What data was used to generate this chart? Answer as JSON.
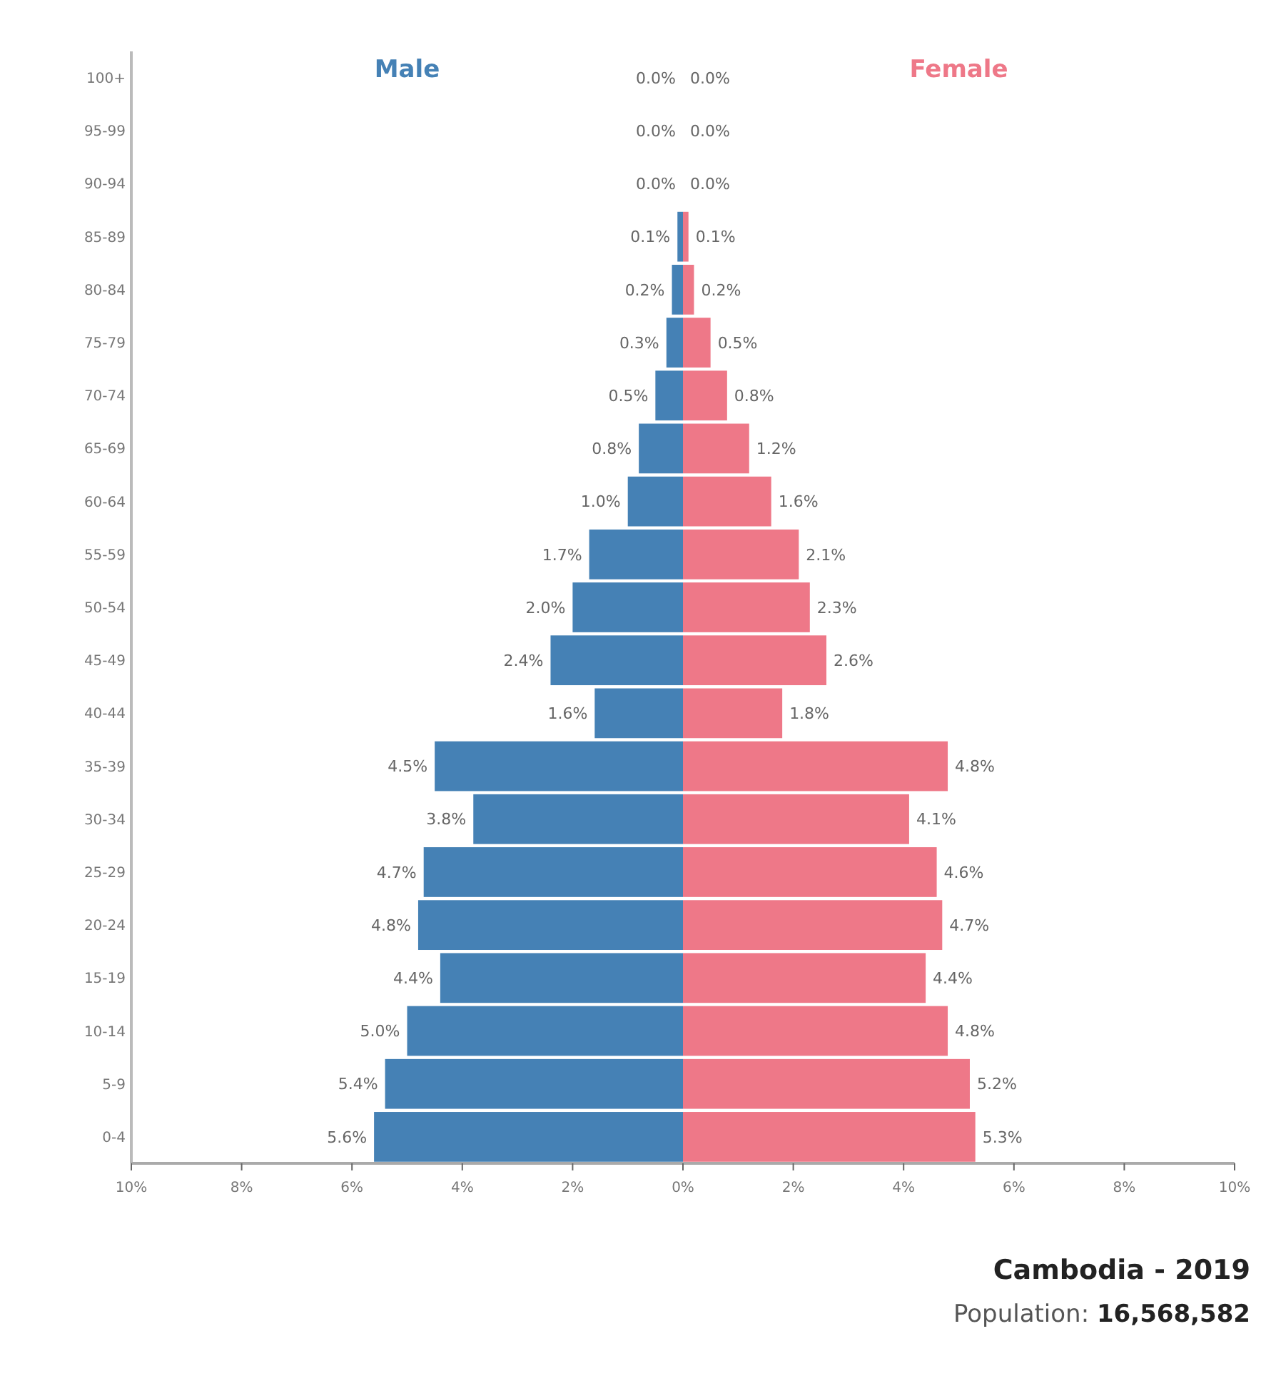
{
  "chart_data": {
    "type": "bar",
    "orientation": "horizontal",
    "title": "Cambodia - 2019",
    "subtitle": "Population: 16,568,582",
    "categories": [
      "100+",
      "95-99",
      "90-94",
      "85-89",
      "80-84",
      "75-79",
      "70-74",
      "65-69",
      "60-64",
      "55-59",
      "50-54",
      "45-49",
      "40-44",
      "35-39",
      "30-34",
      "25-29",
      "20-24",
      "15-19",
      "10-14",
      "5-9",
      "0-4"
    ],
    "series": [
      {
        "name": "Male",
        "color": "#4581b5",
        "base": [
          null,
          null,
          null,
          -0.1,
          -0.2,
          -0.3,
          -0.5,
          -0.8,
          -1.0,
          -1.7,
          -2.0,
          -2.4,
          -1.6,
          -4.5,
          -3.8,
          -4.7,
          -4.8,
          -4.4,
          -5.0,
          -5.4,
          -5.6
        ],
        "values": [
          0.0,
          0.0,
          0.0,
          0.1,
          0.2,
          0.3,
          0.5,
          0.8,
          1.0,
          1.7,
          2.0,
          2.4,
          1.6,
          4.5,
          3.8,
          4.7,
          4.8,
          4.4,
          5.0,
          5.4,
          5.6
        ],
        "value_labels": [
          "0.0%",
          "0.0%",
          "0.0%",
          "0.1%",
          "0.2%",
          "0.3%",
          "0.5%",
          "0.8%",
          "1.0%",
          "1.7%",
          "2.0%",
          "2.4%",
          "1.6%",
          "4.5%",
          "3.8%",
          "4.7%",
          "4.8%",
          "4.4%",
          "5.0%",
          "5.4%",
          "5.6%"
        ]
      },
      {
        "name": "Female",
        "color": "#ee7888",
        "values": [
          0.0,
          0.0,
          0.0,
          0.1,
          0.2,
          0.5,
          0.8,
          1.2,
          1.6,
          2.1,
          2.3,
          2.6,
          1.8,
          4.8,
          4.1,
          4.6,
          4.7,
          4.4,
          4.8,
          5.2,
          5.3
        ],
        "value_labels": [
          "0.0%",
          "0.0%",
          "0.0%",
          "0.1%",
          "0.2%",
          "0.5%",
          "0.8%",
          "1.2%",
          "1.6%",
          "2.1%",
          "2.3%",
          "2.6%",
          "1.8%",
          "4.8%",
          "4.1%",
          "4.6%",
          "4.7%",
          "4.4%",
          "4.8%",
          "5.2%",
          "5.3%"
        ]
      }
    ],
    "xlim": [
      -10,
      10
    ],
    "xticks": [
      {
        "value": -10,
        "label": "10%"
      },
      {
        "value": -8,
        "label": "8%"
      },
      {
        "value": -6,
        "label": "6%"
      },
      {
        "value": -4,
        "label": "4%"
      },
      {
        "value": -2,
        "label": "2%"
      },
      {
        "value": 0,
        "label": "0%"
      },
      {
        "value": 2,
        "label": "2%"
      },
      {
        "value": 4,
        "label": "4%"
      },
      {
        "value": 6,
        "label": "6%"
      },
      {
        "value": 8,
        "label": "8%"
      },
      {
        "value": 10,
        "label": "10%"
      }
    ]
  }
}
